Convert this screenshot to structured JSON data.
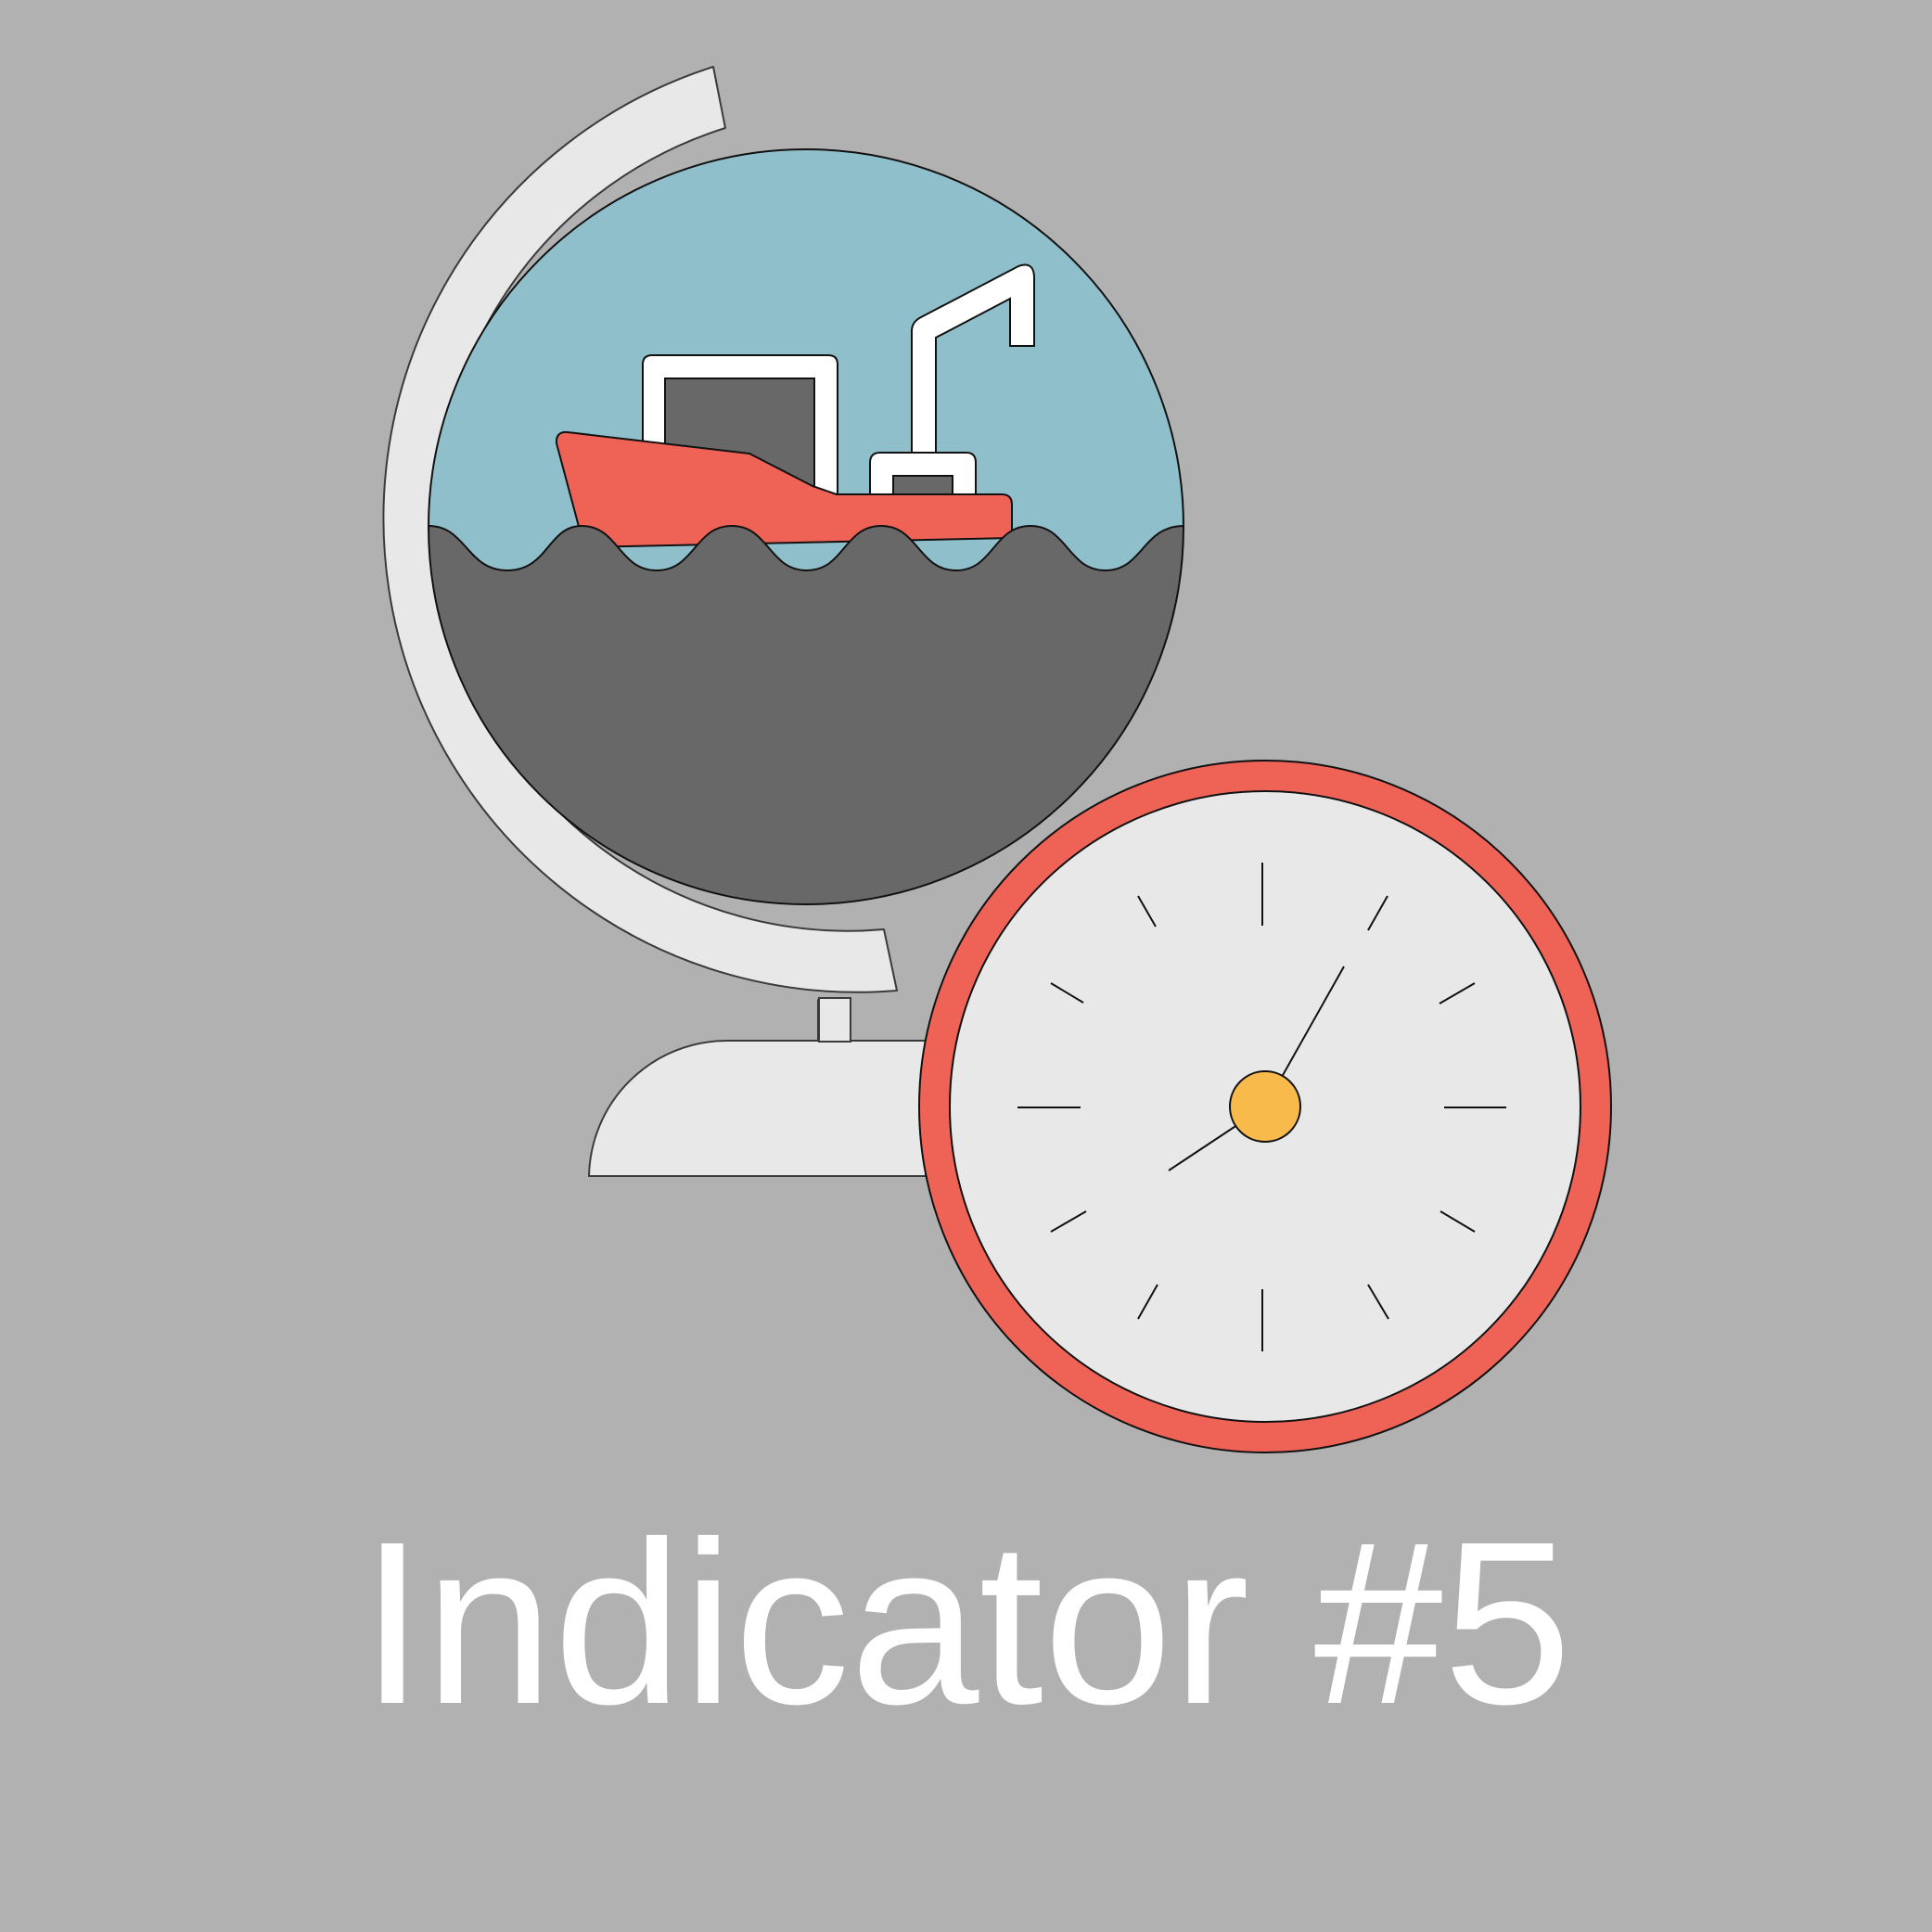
{
  "title": "Indicator #5",
  "icons": [
    "globe-icon",
    "ship-icon",
    "clock-icon"
  ],
  "colors": {
    "background": "#b1b1b1",
    "globe_stand": "#e8e8e8",
    "sky": "#90bfcc",
    "sea": "#686868",
    "hull": "#ef6357",
    "clock_rim": "#ef6357",
    "clock_face": "#e8e8e8",
    "clock_pin": "#f8ba4a",
    "text": "#ffffff"
  }
}
